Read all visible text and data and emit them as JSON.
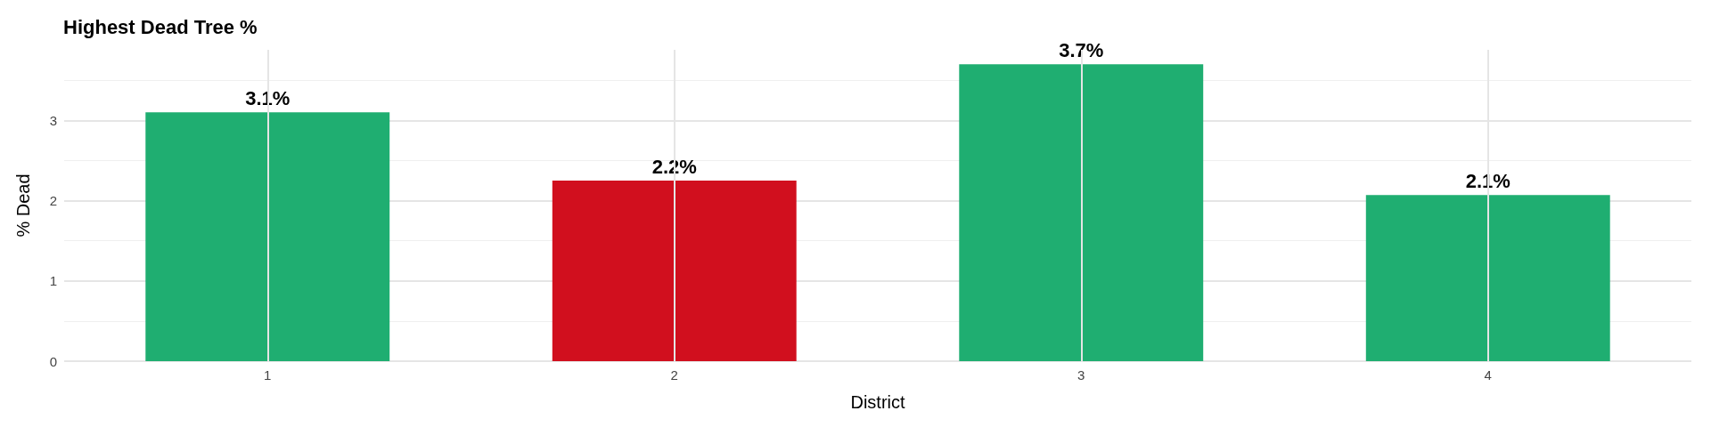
{
  "chart_data": {
    "type": "bar",
    "title": "Highest Dead Tree %",
    "xlabel": "District",
    "ylabel": "% Dead",
    "categories": [
      "1",
      "2",
      "3",
      "4"
    ],
    "values": [
      3.1,
      2.25,
      3.7,
      2.07
    ],
    "colors": [
      "#1fae71",
      "#d10f1e",
      "#1fae71",
      "#1fae71"
    ],
    "value_labels": [
      "3.1%",
      "2.2%",
      "3.7%",
      "2.1%"
    ],
    "ylim": [
      0,
      3.88
    ],
    "yticks": [
      0,
      1,
      2,
      3
    ],
    "grid": true
  }
}
